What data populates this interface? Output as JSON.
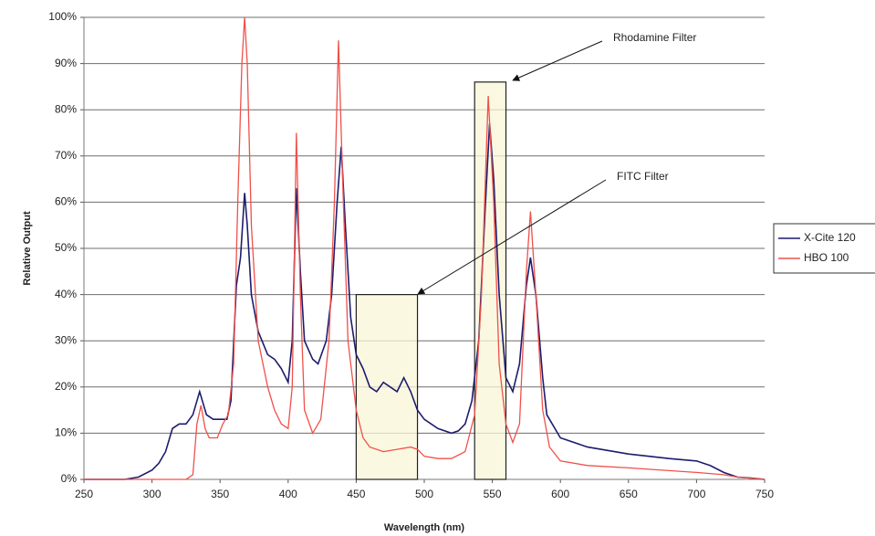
{
  "chart_data": {
    "type": "line",
    "xlabel": "Wavelength (nm)",
    "ylabel": "Relative Output",
    "xlim": [
      250,
      750
    ],
    "xticks": [
      250,
      300,
      350,
      400,
      450,
      500,
      550,
      600,
      650,
      700,
      750
    ],
    "ylim": [
      0,
      100
    ],
    "yticks": [
      {
        "value": 0,
        "label": "0%"
      },
      {
        "value": 10,
        "label": "10%"
      },
      {
        "value": 20,
        "label": "20%"
      },
      {
        "value": 30,
        "label": "30%"
      },
      {
        "value": 40,
        "label": "40%"
      },
      {
        "value": 50,
        "label": "50%"
      },
      {
        "value": 60,
        "label": "60%"
      },
      {
        "value": 70,
        "label": "70%"
      },
      {
        "value": 80,
        "label": "80%"
      },
      {
        "value": 90,
        "label": "90%"
      },
      {
        "value": 100,
        "label": "100%"
      }
    ],
    "grid": true,
    "legend": "right",
    "series": [
      {
        "name": "X-Cite 120",
        "color": "#1c1c6e",
        "x": [
          250,
          280,
          290,
          300,
          305,
          310,
          315,
          320,
          325,
          330,
          335,
          340,
          345,
          350,
          355,
          358,
          362,
          365,
          368,
          370,
          373,
          378,
          385,
          390,
          395,
          400,
          403,
          406,
          409,
          412,
          418,
          422,
          428,
          432,
          436,
          439,
          442,
          446,
          450,
          455,
          460,
          465,
          470,
          475,
          480,
          485,
          490,
          495,
          500,
          510,
          520,
          525,
          530,
          535,
          540,
          545,
          548,
          551,
          555,
          560,
          565,
          570,
          575,
          578,
          582,
          587,
          590,
          600,
          620,
          650,
          680,
          700,
          710,
          720,
          730,
          740,
          750
        ],
        "values": [
          0,
          0,
          0.5,
          2,
          3.5,
          6,
          11,
          12,
          12,
          14,
          19,
          14,
          13,
          13,
          13,
          17,
          42,
          48,
          62,
          55,
          40,
          32,
          27,
          26,
          24,
          21,
          30,
          63,
          45,
          30,
          26,
          25,
          30,
          40,
          60,
          72,
          55,
          35,
          27,
          24,
          20,
          19,
          21,
          20,
          19,
          22,
          19,
          15,
          13,
          11,
          10,
          10.5,
          12,
          17,
          30,
          60,
          77,
          65,
          40,
          22,
          19,
          25,
          42,
          48,
          40,
          22,
          14,
          9,
          7,
          5.5,
          4.5,
          4,
          3,
          1.5,
          0.5,
          0.3,
          0
        ]
      },
      {
        "name": "HBO 100",
        "color": "#f0504a",
        "x": [
          250,
          325,
          330,
          333,
          336,
          339,
          342,
          348,
          352,
          356,
          360,
          363,
          366,
          368,
          370,
          373,
          378,
          385,
          390,
          395,
          400,
          403,
          406,
          409,
          412,
          418,
          424,
          430,
          434,
          437,
          440,
          444,
          450,
          455,
          460,
          470,
          480,
          490,
          495,
          500,
          510,
          520,
          530,
          537,
          542,
          547,
          551,
          555,
          560,
          565,
          570,
          575,
          578,
          582,
          587,
          592,
          600,
          620,
          650,
          700,
          720,
          730,
          750
        ],
        "values": [
          0,
          0,
          1,
          12,
          16,
          11,
          9,
          9,
          12,
          14,
          25,
          60,
          90,
          100,
          90,
          55,
          30,
          20,
          15,
          12,
          11,
          20,
          75,
          40,
          15,
          10,
          13,
          30,
          60,
          95,
          65,
          30,
          15,
          9,
          7,
          6,
          6.5,
          7,
          6.5,
          5,
          4.5,
          4.5,
          6,
          14,
          40,
          83,
          60,
          25,
          12,
          8,
          12,
          45,
          58,
          40,
          15,
          7,
          4,
          3,
          2.5,
          1.5,
          1,
          0.5,
          0
        ]
      }
    ],
    "annotations": [
      {
        "text": "Rhodamine Filter",
        "x": [
          537,
          560
        ],
        "top": 86
      },
      {
        "text": "FITC Filter",
        "x": [
          450,
          495
        ],
        "top": 40
      }
    ]
  }
}
